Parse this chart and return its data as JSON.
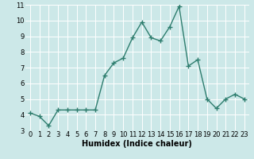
{
  "x": [
    0,
    1,
    2,
    3,
    4,
    5,
    6,
    7,
    8,
    9,
    10,
    11,
    12,
    13,
    14,
    15,
    16,
    17,
    18,
    19,
    20,
    21,
    22,
    23
  ],
  "y": [
    4.1,
    3.9,
    3.3,
    4.3,
    4.3,
    4.3,
    4.3,
    4.3,
    6.5,
    7.3,
    7.6,
    8.9,
    9.9,
    8.9,
    8.7,
    9.6,
    10.9,
    7.1,
    7.5,
    5.0,
    4.4,
    5.0,
    5.3,
    5.0
  ],
  "xlabel": "Humidex (Indice chaleur)",
  "line_color": "#2e7d6e",
  "bg_color": "#cce8e8",
  "grid_color": "#ffffff",
  "ylim": [
    3,
    11
  ],
  "xlim": [
    -0.5,
    23.5
  ],
  "yticks": [
    3,
    4,
    5,
    6,
    7,
    8,
    9,
    10,
    11
  ],
  "xticks": [
    0,
    1,
    2,
    3,
    4,
    5,
    6,
    7,
    8,
    9,
    10,
    11,
    12,
    13,
    14,
    15,
    16,
    17,
    18,
    19,
    20,
    21,
    22,
    23
  ],
  "marker_size": 4,
  "line_width": 1.0,
  "xlabel_fontsize": 7,
  "tick_fontsize": 6
}
